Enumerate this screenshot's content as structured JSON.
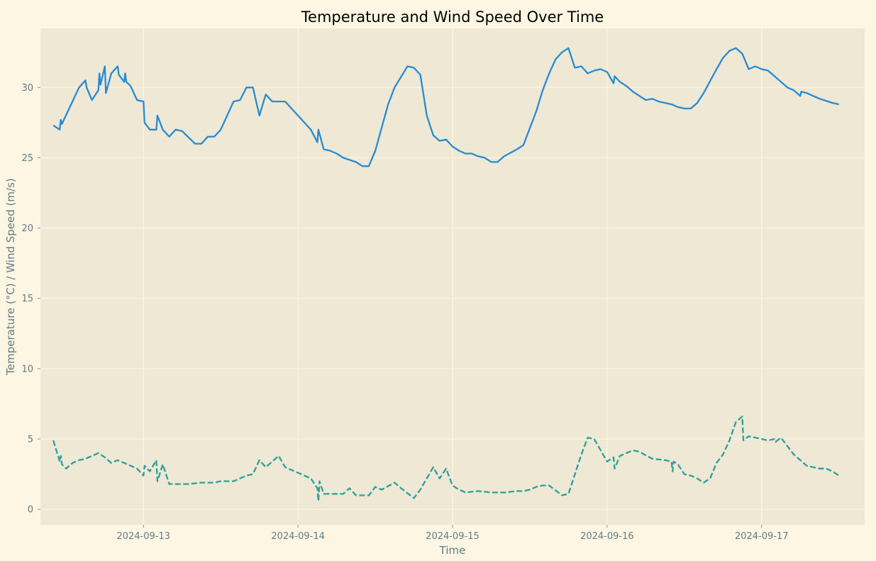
{
  "chart_data": {
    "type": "line",
    "title": "Temperature and Wind Speed Over Time",
    "xlabel": "Time",
    "ylabel": "Temperature (°C) / Wind Speed (m/s)",
    "x_tick_labels": [
      "2024-09-13",
      "2024-09-14",
      "2024-09-15",
      "2024-09-16",
      "2024-09-17"
    ],
    "y_ticks": [
      0,
      5,
      10,
      15,
      20,
      25,
      30
    ],
    "xlim": [
      "2024-09-12 08:00",
      "2024-09-17 16:00"
    ],
    "ylim": [
      -1.1,
      34.2
    ],
    "grid": true,
    "legend": "none",
    "colors": {
      "figure_bg": "#fdf6e3",
      "axes_bg": "#eee8d5",
      "grid": "#fdf6e3",
      "text": "#657b83",
      "temperature": "#268bd2",
      "wind_speed": "#2aa198"
    },
    "series": [
      {
        "key": "temperature",
        "style": "solid",
        "points": [
          [
            "2024-09-12 10:00",
            27.3
          ],
          [
            "2024-09-12 11:00",
            27.0
          ],
          [
            "2024-09-12 11:10",
            27.7
          ],
          [
            "2024-09-12 11:20",
            27.4
          ],
          [
            "2024-09-12 14:00",
            30.0
          ],
          [
            "2024-09-12 15:00",
            30.5
          ],
          [
            "2024-09-12 15:10",
            30.0
          ],
          [
            "2024-09-12 16:00",
            29.1
          ],
          [
            "2024-09-12 17:00",
            29.8
          ],
          [
            "2024-09-12 17:10",
            31.0
          ],
          [
            "2024-09-12 17:20",
            30.2
          ],
          [
            "2024-09-12 18:00",
            31.5
          ],
          [
            "2024-09-12 18:10",
            29.6
          ],
          [
            "2024-09-12 19:00",
            31.0
          ],
          [
            "2024-09-12 20:00",
            31.5
          ],
          [
            "2024-09-12 20:10",
            30.9
          ],
          [
            "2024-09-12 21:00",
            30.4
          ],
          [
            "2024-09-12 21:10",
            31.0
          ],
          [
            "2024-09-12 21:20",
            30.4
          ],
          [
            "2024-09-12 22:00",
            30.1
          ],
          [
            "2024-09-12 23:00",
            29.1
          ],
          [
            "2024-09-13 00:00",
            29.0
          ],
          [
            "2024-09-13 00:10",
            27.5
          ],
          [
            "2024-09-13 01:00",
            27.0
          ],
          [
            "2024-09-13 02:00",
            27.0
          ],
          [
            "2024-09-13 02:10",
            28.0
          ],
          [
            "2024-09-13 03:00",
            27.0
          ],
          [
            "2024-09-13 04:00",
            26.5
          ],
          [
            "2024-09-13 05:00",
            27.0
          ],
          [
            "2024-09-13 06:00",
            26.9
          ],
          [
            "2024-09-13 08:00",
            26.0
          ],
          [
            "2024-09-13 09:00",
            26.0
          ],
          [
            "2024-09-13 10:00",
            26.5
          ],
          [
            "2024-09-13 11:00",
            26.5
          ],
          [
            "2024-09-13 12:00",
            27.0
          ],
          [
            "2024-09-13 14:00",
            29.0
          ],
          [
            "2024-09-13 15:00",
            29.1
          ],
          [
            "2024-09-13 16:00",
            30.0
          ],
          [
            "2024-09-13 17:00",
            30.0
          ],
          [
            "2024-09-13 18:00",
            28.0
          ],
          [
            "2024-09-13 19:00",
            29.5
          ],
          [
            "2024-09-13 20:00",
            29.0
          ],
          [
            "2024-09-13 22:00",
            29.0
          ],
          [
            "2024-09-14 00:00",
            28.0
          ],
          [
            "2024-09-14 02:00",
            27.0
          ],
          [
            "2024-09-14 03:00",
            26.1
          ],
          [
            "2024-09-14 03:10",
            27.0
          ],
          [
            "2024-09-14 04:00",
            25.6
          ],
          [
            "2024-09-14 05:00",
            25.5
          ],
          [
            "2024-09-14 06:00",
            25.3
          ],
          [
            "2024-09-14 07:00",
            25.0
          ],
          [
            "2024-09-14 09:00",
            24.7
          ],
          [
            "2024-09-14 10:00",
            24.4
          ],
          [
            "2024-09-14 11:00",
            24.4
          ],
          [
            "2024-09-14 12:00",
            25.5
          ],
          [
            "2024-09-14 14:00",
            28.8
          ],
          [
            "2024-09-14 15:00",
            30.0
          ],
          [
            "2024-09-14 17:00",
            31.5
          ],
          [
            "2024-09-14 18:00",
            31.4
          ],
          [
            "2024-09-14 19:00",
            30.9
          ],
          [
            "2024-09-14 20:00",
            28.0
          ],
          [
            "2024-09-14 21:00",
            26.6
          ],
          [
            "2024-09-14 22:00",
            26.2
          ],
          [
            "2024-09-14 23:00",
            26.3
          ],
          [
            "2024-09-15 00:00",
            25.8
          ],
          [
            "2024-09-15 01:00",
            25.5
          ],
          [
            "2024-09-15 02:00",
            25.3
          ],
          [
            "2024-09-15 03:00",
            25.3
          ],
          [
            "2024-09-15 04:00",
            25.1
          ],
          [
            "2024-09-15 05:00",
            25.0
          ],
          [
            "2024-09-15 06:00",
            24.7
          ],
          [
            "2024-09-15 07:00",
            24.7
          ],
          [
            "2024-09-15 08:00",
            25.1
          ],
          [
            "2024-09-15 10:00",
            25.6
          ],
          [
            "2024-09-15 11:00",
            25.9
          ],
          [
            "2024-09-15 13:00",
            28.3
          ],
          [
            "2024-09-15 14:00",
            29.8
          ],
          [
            "2024-09-15 15:00",
            31.0
          ],
          [
            "2024-09-15 16:00",
            32.0
          ],
          [
            "2024-09-15 17:00",
            32.5
          ],
          [
            "2024-09-15 18:00",
            32.8
          ],
          [
            "2024-09-15 19:00",
            31.4
          ],
          [
            "2024-09-15 20:00",
            31.5
          ],
          [
            "2024-09-15 21:00",
            31.0
          ],
          [
            "2024-09-15 22:00",
            31.2
          ],
          [
            "2024-09-15 23:00",
            31.3
          ],
          [
            "2024-09-16 00:00",
            31.1
          ],
          [
            "2024-09-16 01:00",
            30.3
          ],
          [
            "2024-09-16 01:10",
            30.8
          ],
          [
            "2024-09-16 02:00",
            30.4
          ],
          [
            "2024-09-16 03:00",
            30.1
          ],
          [
            "2024-09-16 04:00",
            29.7
          ],
          [
            "2024-09-16 05:00",
            29.4
          ],
          [
            "2024-09-16 06:00",
            29.1
          ],
          [
            "2024-09-16 07:00",
            29.2
          ],
          [
            "2024-09-16 08:00",
            29.0
          ],
          [
            "2024-09-16 10:00",
            28.8
          ],
          [
            "2024-09-16 11:00",
            28.6
          ],
          [
            "2024-09-16 12:00",
            28.5
          ],
          [
            "2024-09-16 13:00",
            28.5
          ],
          [
            "2024-09-16 14:00",
            28.9
          ],
          [
            "2024-09-16 15:00",
            29.6
          ],
          [
            "2024-09-16 17:00",
            31.3
          ],
          [
            "2024-09-16 18:00",
            32.1
          ],
          [
            "2024-09-16 19:00",
            32.6
          ],
          [
            "2024-09-16 20:00",
            32.8
          ],
          [
            "2024-09-16 21:00",
            32.4
          ],
          [
            "2024-09-16 22:00",
            31.3
          ],
          [
            "2024-09-16 23:00",
            31.5
          ],
          [
            "2024-09-17 00:00",
            31.3
          ],
          [
            "2024-09-17 01:00",
            31.2
          ],
          [
            "2024-09-17 02:00",
            30.8
          ],
          [
            "2024-09-17 03:00",
            30.4
          ],
          [
            "2024-09-17 04:00",
            30.0
          ],
          [
            "2024-09-17 05:00",
            29.8
          ],
          [
            "2024-09-17 06:00",
            29.4
          ],
          [
            "2024-09-17 06:10",
            29.7
          ],
          [
            "2024-09-17 07:00",
            29.6
          ],
          [
            "2024-09-17 09:00",
            29.2
          ],
          [
            "2024-09-17 11:00",
            28.9
          ],
          [
            "2024-09-17 12:00",
            28.8
          ]
        ]
      },
      {
        "key": "wind_speed",
        "style": "dashed",
        "points": [
          [
            "2024-09-12 10:00",
            4.9
          ],
          [
            "2024-09-12 11:00",
            3.4
          ],
          [
            "2024-09-12 11:10",
            3.8
          ],
          [
            "2024-09-12 11:20",
            3.2
          ],
          [
            "2024-09-12 12:00",
            2.9
          ],
          [
            "2024-09-12 13:00",
            3.3
          ],
          [
            "2024-09-12 14:00",
            3.5
          ],
          [
            "2024-09-12 15:00",
            3.6
          ],
          [
            "2024-09-12 16:00",
            3.8
          ],
          [
            "2024-09-12 17:00",
            4.0
          ],
          [
            "2024-09-12 18:00",
            3.7
          ],
          [
            "2024-09-12 19:00",
            3.3
          ],
          [
            "2024-09-12 20:00",
            3.5
          ],
          [
            "2024-09-12 21:00",
            3.3
          ],
          [
            "2024-09-12 22:00",
            3.1
          ],
          [
            "2024-09-12 23:00",
            2.9
          ],
          [
            "2024-09-13 00:00",
            2.4
          ],
          [
            "2024-09-13 00:10",
            3.1
          ],
          [
            "2024-09-13 01:00",
            2.7
          ],
          [
            "2024-09-13 02:00",
            3.5
          ],
          [
            "2024-09-13 02:10",
            2.0
          ],
          [
            "2024-09-13 03:00",
            3.2
          ],
          [
            "2024-09-13 04:00",
            1.8
          ],
          [
            "2024-09-13 05:00",
            1.8
          ],
          [
            "2024-09-13 07:00",
            1.8
          ],
          [
            "2024-09-13 09:00",
            1.9
          ],
          [
            "2024-09-13 11:00",
            1.9
          ],
          [
            "2024-09-13 12:00",
            2.0
          ],
          [
            "2024-09-13 14:00",
            2.0
          ],
          [
            "2024-09-13 16:00",
            2.4
          ],
          [
            "2024-09-13 17:00",
            2.5
          ],
          [
            "2024-09-13 18:00",
            3.5
          ],
          [
            "2024-09-13 19:00",
            3.0
          ],
          [
            "2024-09-13 20:00",
            3.4
          ],
          [
            "2024-09-13 21:00",
            3.8
          ],
          [
            "2024-09-13 22:00",
            3.0
          ],
          [
            "2024-09-14 00:00",
            2.6
          ],
          [
            "2024-09-14 02:00",
            2.2
          ],
          [
            "2024-09-14 03:00",
            1.5
          ],
          [
            "2024-09-14 03:10",
            0.6
          ],
          [
            "2024-09-14 03:20",
            2.0
          ],
          [
            "2024-09-14 04:00",
            1.1
          ],
          [
            "2024-09-14 06:00",
            1.1
          ],
          [
            "2024-09-14 07:00",
            1.1
          ],
          [
            "2024-09-14 08:00",
            1.5
          ],
          [
            "2024-09-14 09:00",
            1.0
          ],
          [
            "2024-09-14 10:00",
            1.0
          ],
          [
            "2024-09-14 11:00",
            1.0
          ],
          [
            "2024-09-14 12:00",
            1.6
          ],
          [
            "2024-09-14 13:00",
            1.4
          ],
          [
            "2024-09-14 15:00",
            1.9
          ],
          [
            "2024-09-14 16:00",
            1.5
          ],
          [
            "2024-09-14 18:00",
            0.8
          ],
          [
            "2024-09-14 19:00",
            1.4
          ],
          [
            "2024-09-14 21:00",
            3.0
          ],
          [
            "2024-09-14 22:00",
            2.2
          ],
          [
            "2024-09-14 23:00",
            2.9
          ],
          [
            "2024-09-15 00:00",
            1.7
          ],
          [
            "2024-09-15 01:00",
            1.4
          ],
          [
            "2024-09-15 02:00",
            1.2
          ],
          [
            "2024-09-15 04:00",
            1.3
          ],
          [
            "2024-09-15 06:00",
            1.2
          ],
          [
            "2024-09-15 08:00",
            1.2
          ],
          [
            "2024-09-15 10:00",
            1.3
          ],
          [
            "2024-09-15 11:00",
            1.3
          ],
          [
            "2024-09-15 12:00",
            1.4
          ],
          [
            "2024-09-15 13:00",
            1.6
          ],
          [
            "2024-09-15 14:00",
            1.7
          ],
          [
            "2024-09-15 15:00",
            1.7
          ],
          [
            "2024-09-15 17:00",
            1.0
          ],
          [
            "2024-09-15 18:00",
            1.1
          ],
          [
            "2024-09-15 20:00",
            3.9
          ],
          [
            "2024-09-15 21:00",
            5.1
          ],
          [
            "2024-09-15 22:00",
            5.0
          ],
          [
            "2024-09-16 00:00",
            3.4
          ],
          [
            "2024-09-16 01:00",
            3.7
          ],
          [
            "2024-09-16 01:10",
            2.9
          ],
          [
            "2024-09-16 02:00",
            3.8
          ],
          [
            "2024-09-16 04:00",
            4.2
          ],
          [
            "2024-09-16 05:00",
            4.1
          ],
          [
            "2024-09-16 07:00",
            3.6
          ],
          [
            "2024-09-16 09:00",
            3.5
          ],
          [
            "2024-09-16 10:00",
            3.4
          ],
          [
            "2024-09-16 10:10",
            2.7
          ],
          [
            "2024-09-16 10:20",
            3.4
          ],
          [
            "2024-09-16 11:00",
            3.2
          ],
          [
            "2024-09-16 12:00",
            2.5
          ],
          [
            "2024-09-16 13:00",
            2.4
          ],
          [
            "2024-09-16 14:00",
            2.2
          ],
          [
            "2024-09-16 15:00",
            1.9
          ],
          [
            "2024-09-16 16:00",
            2.2
          ],
          [
            "2024-09-16 17:00",
            3.3
          ],
          [
            "2024-09-16 18:00",
            3.9
          ],
          [
            "2024-09-16 19:00",
            4.9
          ],
          [
            "2024-09-16 20:00",
            6.2
          ],
          [
            "2024-09-16 21:00",
            6.6
          ],
          [
            "2024-09-16 21:10",
            4.9
          ],
          [
            "2024-09-16 22:00",
            5.2
          ],
          [
            "2024-09-17 00:00",
            5.0
          ],
          [
            "2024-09-17 01:00",
            4.9
          ],
          [
            "2024-09-17 02:00",
            5.0
          ],
          [
            "2024-09-17 02:10",
            4.8
          ],
          [
            "2024-09-17 03:00",
            5.1
          ],
          [
            "2024-09-17 05:00",
            3.9
          ],
          [
            "2024-09-17 07:00",
            3.1
          ],
          [
            "2024-09-17 09:00",
            2.9
          ],
          [
            "2024-09-17 10:00",
            2.9
          ],
          [
            "2024-09-17 11:00",
            2.7
          ],
          [
            "2024-09-17 12:00",
            2.4
          ]
        ]
      }
    ]
  }
}
